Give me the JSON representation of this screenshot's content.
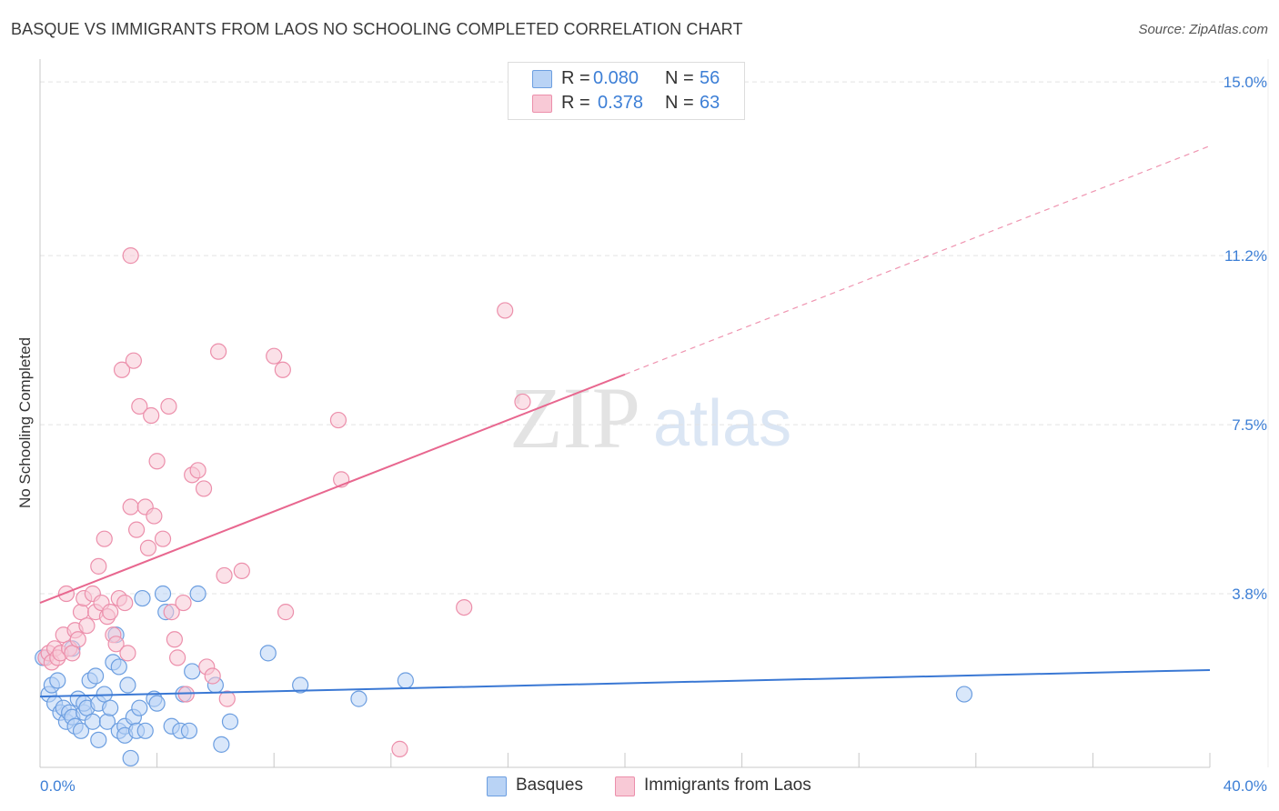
{
  "title": "BASQUE VS IMMIGRANTS FROM LAOS NO SCHOOLING COMPLETED CORRELATION CHART",
  "source": "Source: ZipAtlas.com",
  "watermark": {
    "zip": "ZIP",
    "atlas": "atlas"
  },
  "legend_top": [
    {
      "r_label": "R =",
      "r_value": "0.080",
      "n_label": "N =",
      "n_value": "56"
    },
    {
      "r_label": "R =",
      "r_value": "0.378",
      "n_label": "N =",
      "n_value": "63"
    }
  ],
  "legend_bottom": [
    "Basques",
    "Immigrants from Laos"
  ],
  "colors": {
    "blue_fill": "#b9d3f5",
    "blue_stroke": "#6c9ee0",
    "blue_line": "#3a78d4",
    "pink_fill": "#f8c9d6",
    "pink_stroke": "#ec8fab",
    "pink_line": "#e8678f",
    "tick_label": "#3d7fd6",
    "grid": "#e3e3e3"
  },
  "chart_data": {
    "type": "scatter",
    "title": "BASQUE VS IMMIGRANTS FROM LAOS NO SCHOOLING COMPLETED CORRELATION CHART",
    "xlabel": "",
    "ylabel": "No Schooling Completed",
    "xlim": [
      0,
      40
    ],
    "ylim": [
      0,
      15.5
    ],
    "x_tick_labels": [
      {
        "value": 0,
        "label": "0.0%"
      },
      {
        "value": 40,
        "label": "40.0%"
      }
    ],
    "x_minor_ticks": [
      4,
      8,
      12,
      16,
      20,
      24,
      28,
      32,
      36,
      40
    ],
    "y_ticks": [
      {
        "value": 3.8,
        "label": "3.8%"
      },
      {
        "value": 7.5,
        "label": "7.5%"
      },
      {
        "value": 11.2,
        "label": "11.2%"
      },
      {
        "value": 15.0,
        "label": "15.0%"
      }
    ],
    "series": [
      {
        "name": "Basques",
        "R": 0.08,
        "N": 56,
        "trend": {
          "x0": 0,
          "y0": 1.55,
          "x1": 40,
          "y1": 2.13,
          "solid_until": 40
        },
        "points": [
          [
            0.3,
            1.6
          ],
          [
            0.4,
            1.8
          ],
          [
            0.5,
            1.4
          ],
          [
            0.6,
            1.9
          ],
          [
            0.7,
            1.2
          ],
          [
            0.8,
            1.3
          ],
          [
            0.9,
            1.0
          ],
          [
            1.0,
            1.2
          ],
          [
            1.1,
            1.1
          ],
          [
            1.1,
            2.6
          ],
          [
            1.2,
            0.9
          ],
          [
            1.3,
            1.5
          ],
          [
            1.4,
            0.8
          ],
          [
            1.5,
            1.2
          ],
          [
            1.5,
            1.4
          ],
          [
            1.6,
            1.3
          ],
          [
            1.7,
            1.9
          ],
          [
            1.8,
            1.0
          ],
          [
            1.9,
            2.0
          ],
          [
            2.0,
            1.4
          ],
          [
            2.0,
            0.6
          ],
          [
            2.2,
            1.6
          ],
          [
            2.3,
            1.0
          ],
          [
            2.4,
            1.3
          ],
          [
            2.5,
            2.3
          ],
          [
            2.6,
            2.9
          ],
          [
            2.7,
            2.2
          ],
          [
            2.7,
            0.8
          ],
          [
            2.9,
            0.9
          ],
          [
            2.9,
            0.7
          ],
          [
            3.0,
            1.8
          ],
          [
            3.1,
            0.2
          ],
          [
            3.2,
            1.1
          ],
          [
            3.3,
            0.8
          ],
          [
            3.4,
            1.3
          ],
          [
            3.5,
            3.7
          ],
          [
            3.6,
            0.8
          ],
          [
            3.9,
            1.5
          ],
          [
            4.0,
            1.4
          ],
          [
            4.2,
            3.8
          ],
          [
            4.3,
            3.4
          ],
          [
            4.5,
            0.9
          ],
          [
            4.8,
            0.8
          ],
          [
            4.9,
            1.6
          ],
          [
            5.1,
            0.8
          ],
          [
            5.2,
            2.1
          ],
          [
            5.4,
            3.8
          ],
          [
            6.0,
            1.8
          ],
          [
            6.2,
            0.5
          ],
          [
            6.5,
            1.0
          ],
          [
            7.8,
            2.5
          ],
          [
            8.9,
            1.8
          ],
          [
            10.9,
            1.5
          ],
          [
            12.5,
            1.9
          ],
          [
            31.6,
            1.6
          ],
          [
            0.1,
            2.4
          ]
        ]
      },
      {
        "name": "Immigrants from Laos",
        "R": 0.378,
        "N": 63,
        "trend": {
          "x0": 0,
          "y0": 3.6,
          "x1": 40,
          "y1": 13.6,
          "solid_until": 20
        },
        "points": [
          [
            0.2,
            2.4
          ],
          [
            0.3,
            2.5
          ],
          [
            0.4,
            2.3
          ],
          [
            0.5,
            2.6
          ],
          [
            0.6,
            2.4
          ],
          [
            0.7,
            2.5
          ],
          [
            0.8,
            2.9
          ],
          [
            0.9,
            3.8
          ],
          [
            1.0,
            2.6
          ],
          [
            1.1,
            2.5
          ],
          [
            1.2,
            3.0
          ],
          [
            1.3,
            2.8
          ],
          [
            1.4,
            3.4
          ],
          [
            1.5,
            3.7
          ],
          [
            1.6,
            3.1
          ],
          [
            1.8,
            3.8
          ],
          [
            1.9,
            3.4
          ],
          [
            2.0,
            4.4
          ],
          [
            2.1,
            3.6
          ],
          [
            2.2,
            5.0
          ],
          [
            2.3,
            3.3
          ],
          [
            2.4,
            3.4
          ],
          [
            2.5,
            2.9
          ],
          [
            2.6,
            2.7
          ],
          [
            2.7,
            3.7
          ],
          [
            2.8,
            8.7
          ],
          [
            2.9,
            3.6
          ],
          [
            3.0,
            2.5
          ],
          [
            3.1,
            5.7
          ],
          [
            3.2,
            8.9
          ],
          [
            3.3,
            5.2
          ],
          [
            3.4,
            7.9
          ],
          [
            3.6,
            5.7
          ],
          [
            3.7,
            4.8
          ],
          [
            3.8,
            7.7
          ],
          [
            3.9,
            5.5
          ],
          [
            4.0,
            6.7
          ],
          [
            4.2,
            5.0
          ],
          [
            4.4,
            7.9
          ],
          [
            4.5,
            3.4
          ],
          [
            4.6,
            2.8
          ],
          [
            4.7,
            2.4
          ],
          [
            4.9,
            3.6
          ],
          [
            5.0,
            1.6
          ],
          [
            5.2,
            6.4
          ],
          [
            5.4,
            6.5
          ],
          [
            5.6,
            6.1
          ],
          [
            5.7,
            2.2
          ],
          [
            5.9,
            2.0
          ],
          [
            6.1,
            9.1
          ],
          [
            6.3,
            4.2
          ],
          [
            6.4,
            1.5
          ],
          [
            6.9,
            4.3
          ],
          [
            8.0,
            9.0
          ],
          [
            8.3,
            8.7
          ],
          [
            8.4,
            3.4
          ],
          [
            10.3,
            6.3
          ],
          [
            10.2,
            7.6
          ],
          [
            12.3,
            0.4
          ],
          [
            14.5,
            3.5
          ],
          [
            15.9,
            10.0
          ],
          [
            16.5,
            8.0
          ],
          [
            3.1,
            11.2
          ]
        ]
      }
    ]
  }
}
